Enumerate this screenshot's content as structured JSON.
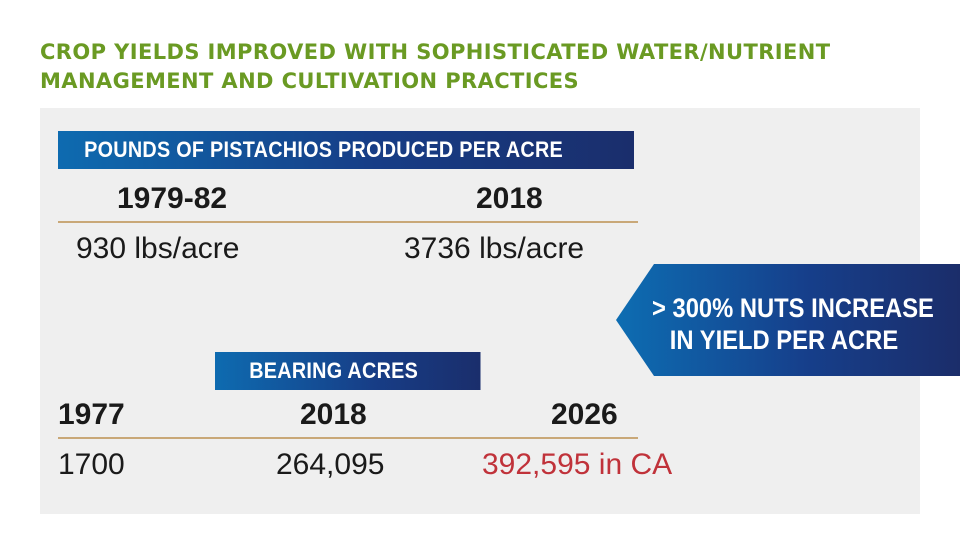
{
  "title": {
    "line1": "CROP YIELDS IMPROVED WITH SOPHISTICATED WATER/NUTRIENT",
    "line2": "MANAGEMENT AND CULTIVATION PRACTICES"
  },
  "yield_section": {
    "banner": "POUNDS OF PISTACHIOS PRODUCED PER ACRE",
    "col1_header": "1979-82",
    "col2_header": "2018",
    "col1_value": "930 lbs/acre",
    "col2_value": "3736 lbs/acre"
  },
  "callout": {
    "line1": "> 300% NUTS INCREASE",
    "line2": "IN YIELD PER ACRE"
  },
  "acres_section": {
    "banner": "BEARING ACRES",
    "col1_header": "1977",
    "col2_header": "2018",
    "col3_header": "2026",
    "col1_value": "1700",
    "col2_value": "264,095",
    "col3_value": "392,595 in CA"
  },
  "colors": {
    "title_green": "#6a9a23",
    "banner_blue": "#173d86",
    "highlight_red": "#c0323a",
    "rule_tan": "#c9a878"
  }
}
